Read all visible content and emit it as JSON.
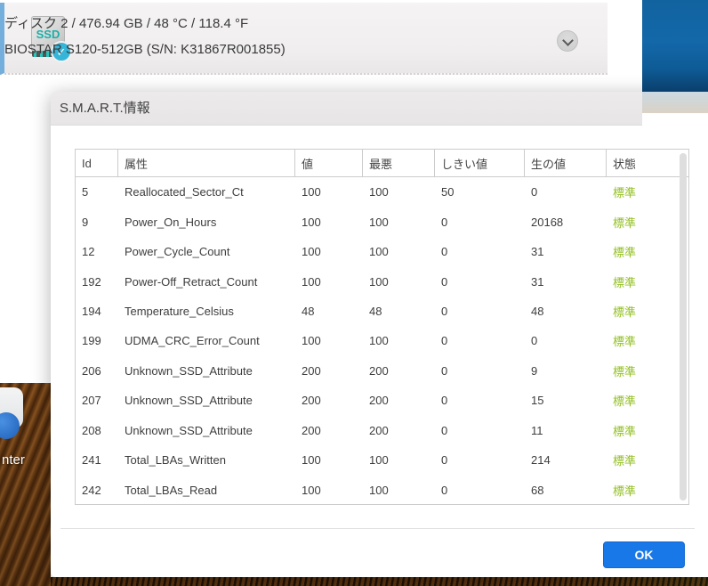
{
  "disk_card": {
    "summary": "ディスク 2 / 476.94 GB / 48 °C / 118.4 °F",
    "model": "BIOSTAR S120-512GB (S/N: K31867R001855)",
    "icon_label": "SSD",
    "badge_glyph": "✓"
  },
  "dialog": {
    "title": "S.M.A.R.T.情報",
    "ok_label": "OK",
    "table": {
      "columns": [
        "Id",
        "属性",
        "値",
        "最悪",
        "しきい値",
        "生の値",
        "状態"
      ],
      "rows": [
        {
          "id": "5",
          "attribute": "Reallocated_Sector_Ct",
          "value": "100",
          "worst": "100",
          "threshold": "50",
          "raw": "0",
          "status": "標準"
        },
        {
          "id": "9",
          "attribute": "Power_On_Hours",
          "value": "100",
          "worst": "100",
          "threshold": "0",
          "raw": "20168",
          "status": "標準"
        },
        {
          "id": "12",
          "attribute": "Power_Cycle_Count",
          "value": "100",
          "worst": "100",
          "threshold": "0",
          "raw": "31",
          "status": "標準"
        },
        {
          "id": "192",
          "attribute": "Power-Off_Retract_Count",
          "value": "100",
          "worst": "100",
          "threshold": "0",
          "raw": "31",
          "status": "標準"
        },
        {
          "id": "194",
          "attribute": "Temperature_Celsius",
          "value": "48",
          "worst": "48",
          "threshold": "0",
          "raw": "48",
          "status": "標準"
        },
        {
          "id": "199",
          "attribute": "UDMA_CRC_Error_Count",
          "value": "100",
          "worst": "100",
          "threshold": "0",
          "raw": "0",
          "status": "標準"
        },
        {
          "id": "206",
          "attribute": "Unknown_SSD_Attribute",
          "value": "200",
          "worst": "200",
          "threshold": "0",
          "raw": "9",
          "status": "標準"
        },
        {
          "id": "207",
          "attribute": "Unknown_SSD_Attribute",
          "value": "200",
          "worst": "200",
          "threshold": "0",
          "raw": "15",
          "status": "標準"
        },
        {
          "id": "208",
          "attribute": "Unknown_SSD_Attribute",
          "value": "200",
          "worst": "200",
          "threshold": "0",
          "raw": "11",
          "status": "標準"
        },
        {
          "id": "241",
          "attribute": "Total_LBAs_Written",
          "value": "100",
          "worst": "100",
          "threshold": "0",
          "raw": "214",
          "status": "標準"
        },
        {
          "id": "242",
          "attribute": "Total_LBAs_Read",
          "value": "100",
          "worst": "100",
          "threshold": "0",
          "raw": "68",
          "status": "標準"
        }
      ]
    }
  },
  "desktop": {
    "icon_label_fragment": "nter"
  },
  "colors": {
    "status_ok": "#92bf21",
    "ok_button": "#1878e8",
    "accent_bar": "#74aedd",
    "badge": "#35b6d9",
    "ssd_label": "#19b0a8"
  }
}
